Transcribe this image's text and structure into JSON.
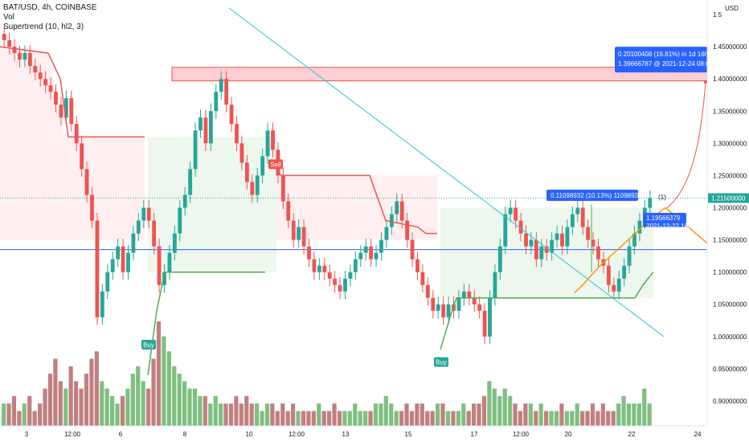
{
  "legend": {
    "symbol": "BAT/USD, 4h, COINBASE",
    "vol": "Vol",
    "supertrend": "Supertrend (10, hl2, 3)"
  },
  "currency": "USD",
  "price_badge": "1.21500000",
  "signals": {
    "sell": "Sell",
    "buy1": "Buy",
    "buy2": "Buy"
  },
  "annotations": {
    "target_line1": "0.20100408 (16.81%) in 1d 16h",
    "target_line2": "1.39666787 @ 2021-12-24 08:00",
    "measure_line1": "0.11098932 (10.13%) 11098932",
    "low_line1": "1.19566379",
    "low_line2": "2021-12-22 16:00",
    "wave_label": "(1)"
  },
  "colors": {
    "up": "#26a69a",
    "down": "#ef5350",
    "vol_up": "#7fbf7f",
    "vol_down": "#c08080",
    "supertrend_up": "#4caf50",
    "supertrend_down": "#ef5350",
    "trendline": "#26c6da",
    "hline": "#2962ff",
    "orange": "#ff9800",
    "tag_blue": "#2962ff"
  },
  "chart_data": {
    "type": "candlestick",
    "title": "BAT/USD, 4h, COINBASE",
    "xlabel": "",
    "ylabel": "",
    "x_ticks": [
      "3",
      "12:00",
      "6",
      "8",
      "10",
      "12:00",
      "13",
      "15",
      "17",
      "12:00",
      "20",
      "22",
      "24"
    ],
    "y_ticks": [
      "1.5",
      "1.45000000",
      "1.40000000",
      "1.35000000",
      "1.30000000",
      "1.25000000",
      "1.20000000",
      "1.15000000",
      "1.10000000",
      "1.05000000",
      "1.00000000",
      "0.95000000",
      "0.90000000"
    ],
    "ylim": [
      0.88,
      1.51
    ],
    "grid": false,
    "last_price": 1.215,
    "horizontal_line": 1.135,
    "close": [
      1.46,
      1.45,
      1.44,
      1.43,
      1.44,
      1.42,
      1.41,
      1.4,
      1.39,
      1.38,
      1.36,
      1.34,
      1.37,
      1.33,
      1.3,
      1.26,
      1.22,
      1.18,
      1.03,
      1.07,
      1.1,
      1.12,
      1.14,
      1.1,
      1.13,
      1.16,
      1.18,
      1.2,
      1.18,
      1.14,
      1.08,
      1.1,
      1.13,
      1.16,
      1.2,
      1.22,
      1.26,
      1.32,
      1.34,
      1.3,
      1.35,
      1.38,
      1.4,
      1.36,
      1.33,
      1.3,
      1.27,
      1.24,
      1.22,
      1.25,
      1.28,
      1.32,
      1.29,
      1.25,
      1.21,
      1.18,
      1.15,
      1.17,
      1.14,
      1.12,
      1.1,
      1.11,
      1.1,
      1.09,
      1.08,
      1.07,
      1.09,
      1.1,
      1.12,
      1.13,
      1.14,
      1.12,
      1.13,
      1.15,
      1.17,
      1.19,
      1.21,
      1.18,
      1.15,
      1.12,
      1.1,
      1.08,
      1.06,
      1.04,
      1.05,
      1.03,
      1.05,
      1.04,
      1.06,
      1.07,
      1.06,
      1.05,
      1.04,
      1.0,
      1.06,
      1.1,
      1.14,
      1.19,
      1.2,
      1.18,
      1.16,
      1.14,
      1.15,
      1.12,
      1.14,
      1.13,
      1.15,
      1.16,
      1.14,
      1.17,
      1.19,
      1.2,
      1.17,
      1.15,
      1.14,
      1.12,
      1.11,
      1.08,
      1.07,
      1.09,
      1.11,
      1.14,
      1.16,
      1.18,
      1.2,
      1.215
    ],
    "volume": [
      3,
      3,
      4,
      2,
      3,
      4,
      2,
      3,
      5,
      7,
      9,
      6,
      5,
      8,
      6,
      5,
      7,
      9,
      10,
      6,
      5,
      4,
      3,
      4,
      5,
      7,
      8,
      6,
      5,
      9,
      14,
      12,
      10,
      8,
      7,
      6,
      5,
      5,
      4,
      4,
      3,
      4,
      3,
      3,
      3,
      4,
      3,
      4,
      3,
      3,
      2,
      3,
      3,
      2,
      3,
      2,
      3,
      2,
      2,
      2,
      2,
      3,
      2,
      2,
      3,
      2,
      2,
      2,
      3,
      2,
      2,
      2,
      3,
      3,
      4,
      3,
      2,
      2,
      3,
      2,
      3,
      3,
      2,
      2,
      3,
      3,
      2,
      2,
      2,
      3,
      2,
      3,
      3,
      4,
      6,
      5,
      4,
      5,
      4,
      3,
      2,
      3,
      3,
      2,
      3,
      2,
      2,
      2,
      3,
      2,
      2,
      3,
      2,
      2,
      3,
      2,
      3,
      2,
      2,
      3,
      4,
      3,
      3,
      3,
      5,
      3
    ]
  }
}
